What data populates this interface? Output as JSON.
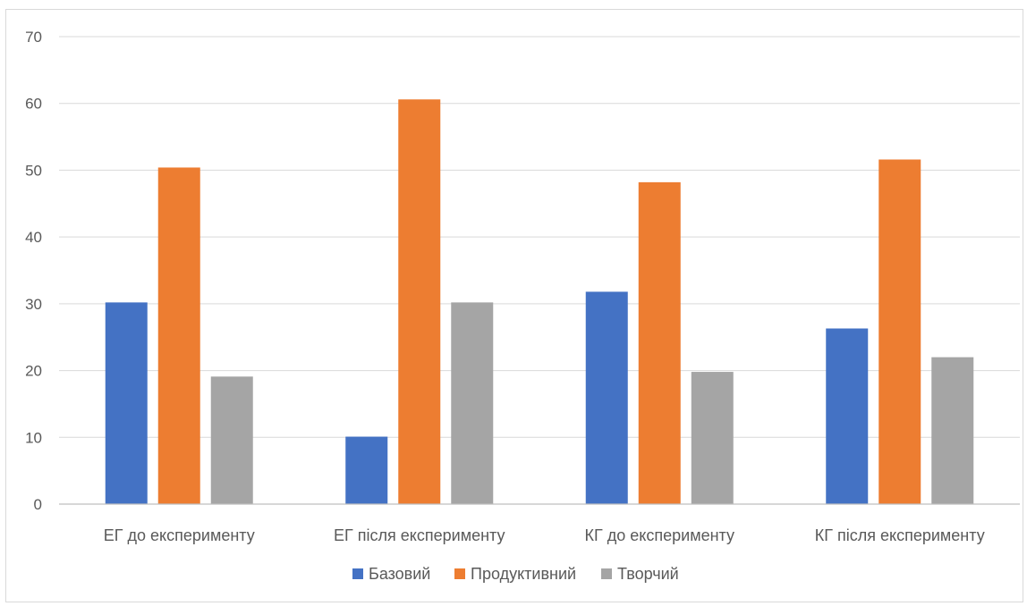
{
  "chart_data": {
    "type": "bar",
    "categories": [
      "ЕГ до експерименту",
      "ЕГ після експерименту",
      "КГ до експерименту",
      "КГ після експерименту"
    ],
    "series": [
      {
        "name": "Базовий",
        "color": "#4472c4",
        "values": [
          30.2,
          10.1,
          31.8,
          26.3
        ]
      },
      {
        "name": "Продуктивний",
        "color": "#ed7d31",
        "values": [
          50.4,
          60.6,
          48.2,
          51.6
        ]
      },
      {
        "name": "Творчий",
        "color": "#a5a5a5",
        "values": [
          19.1,
          30.2,
          19.8,
          22.0
        ]
      }
    ],
    "yticks": [
      "0",
      "10",
      "20",
      "30",
      "40",
      "50",
      "60",
      "70"
    ],
    "ylim": [
      0,
      70
    ],
    "grid": true,
    "legend": "bottom",
    "title": "",
    "xlabel": "",
    "ylabel": ""
  }
}
